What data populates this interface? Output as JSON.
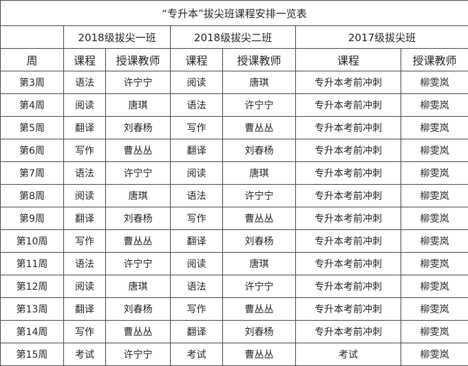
{
  "title": "“专升本”拔尖班课程安排一览表",
  "groups": [
    "2018级拔尖一班",
    "2018级拔尖二班",
    "2017级拔尖班"
  ],
  "headers": [
    "周",
    "课程",
    "授课教师",
    "课程",
    "授课教师",
    "课程",
    "授课教师"
  ],
  "rows": [
    [
      "第3周",
      "语法",
      "许宁宁",
      "阅读",
      "唐琪",
      "专升本考前冲刺",
      "柳雯岚"
    ],
    [
      "第4周",
      "阅读",
      "唐琪",
      "语法",
      "许宁宁",
      "专升本考前冲刺",
      "柳雯岚"
    ],
    [
      "第5周",
      "翻译",
      "刘春杨",
      "写作",
      "曹丛丛",
      "专升本考前冲刺",
      "柳雯岚"
    ],
    [
      "第6周",
      "写作",
      "曹丛丛",
      "翻译",
      "刘春杨",
      "专升本考前冲刺",
      "柳雯岚"
    ],
    [
      "第7周",
      "语法",
      "许宁宁",
      "阅读",
      "唐琪",
      "专升本考前冲刺",
      "柳雯岚"
    ],
    [
      "第8周",
      "阅读",
      "唐琪",
      "语法",
      "许宁宁",
      "专升本考前冲刺",
      "柳雯岚"
    ],
    [
      "第9周",
      "翻译",
      "刘春杨",
      "写作",
      "曹丛丛",
      "专升本考前冲刺",
      "柳雯岚"
    ],
    [
      "第10周",
      "写作",
      "曹丛丛",
      "翻译",
      "刘春杨",
      "专升本考前冲刺",
      "柳雯岚"
    ],
    [
      "第11周",
      "语法",
      "许宁宁",
      "阅读",
      "唐琪",
      "专升本考前冲刺",
      "柳雯岚"
    ],
    [
      "第12周",
      "阅读",
      "唐琪",
      "语法",
      "许宁宁",
      "专升本考前冲刺",
      "柳雯岚"
    ],
    [
      "第13周",
      "翻译",
      "刘春杨",
      "写作",
      "曹丛丛",
      "专升本考前冲刺",
      "柳雯岚"
    ],
    [
      "第14周",
      "写作",
      "曹丛丛",
      "翻译",
      "刘春杨",
      "专升本考前冲刺",
      "柳雯岚"
    ],
    [
      "第15周",
      "考试",
      "许宁宁",
      "考试",
      "曹丛丛",
      "考试",
      "柳雯岚"
    ]
  ]
}
